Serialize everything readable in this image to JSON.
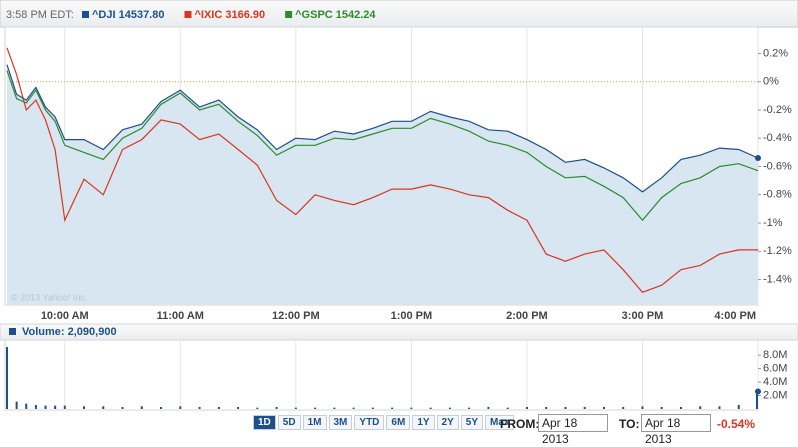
{
  "header": {
    "time": "3:58 PM EDT:"
  },
  "chart_data": [
    {
      "type": "line",
      "watermark": "© 2013 Yahoo! Inc.",
      "x": [
        570,
        575,
        580,
        585,
        590,
        595,
        600,
        610,
        620,
        630,
        640,
        650,
        660,
        670,
        680,
        690,
        700,
        710,
        720,
        730,
        740,
        750,
        760,
        770,
        780,
        790,
        800,
        810,
        820,
        830,
        840,
        850,
        860,
        870,
        880,
        890,
        900,
        910,
        920,
        930,
        940,
        950,
        960
      ],
      "xlim": [
        570,
        960
      ],
      "xticks": [
        {
          "value": 600,
          "label": "10:00 AM"
        },
        {
          "value": 660,
          "label": "11:00 AM"
        },
        {
          "value": 720,
          "label": "12:00 PM"
        },
        {
          "value": 780,
          "label": "1:00 PM"
        },
        {
          "value": 840,
          "label": "2:00 PM"
        },
        {
          "value": 900,
          "label": "3:00 PM"
        },
        {
          "value": 960,
          "label": "4:00 PM"
        }
      ],
      "ylim": [
        -1.58,
        0.38
      ],
      "yticks": [
        {
          "value": 0.2,
          "label": "0.2%"
        },
        {
          "value": 0,
          "label": "0%"
        },
        {
          "value": -0.2,
          "label": "-0.2%"
        },
        {
          "value": -0.4,
          "label": "-0.4%"
        },
        {
          "value": -0.6,
          "label": "-0.6%"
        },
        {
          "value": -0.8,
          "label": "-0.8%"
        },
        {
          "value": -1,
          "label": "-1%"
        },
        {
          "value": -1.2,
          "label": "-1.2%"
        },
        {
          "value": -1.4,
          "label": "-1.4%"
        }
      ],
      "grid": true,
      "zero_line": true,
      "zero_line_color": "#d9963a",
      "area_color": "#d8e6f1",
      "series": [
        {
          "name": "^DJI 14537.80",
          "color": "#1d4f8a",
          "area": true,
          "values": [
            0.12,
            -0.09,
            -0.13,
            -0.04,
            -0.18,
            -0.25,
            -0.41,
            -0.41,
            -0.48,
            -0.34,
            -0.3,
            -0.14,
            -0.06,
            -0.18,
            -0.13,
            -0.25,
            -0.34,
            -0.48,
            -0.4,
            -0.41,
            -0.35,
            -0.37,
            -0.33,
            -0.28,
            -0.28,
            -0.21,
            -0.25,
            -0.28,
            -0.34,
            -0.35,
            -0.41,
            -0.48,
            -0.57,
            -0.55,
            -0.61,
            -0.68,
            -0.78,
            -0.68,
            -0.55,
            -0.52,
            -0.47,
            -0.48,
            -0.54
          ]
        },
        {
          "name": "^IXIC 3166.90",
          "color": "#d9361e",
          "values": [
            0.24,
            0.05,
            -0.2,
            -0.13,
            -0.27,
            -0.48,
            -0.98,
            -0.69,
            -0.8,
            -0.48,
            -0.41,
            -0.27,
            -0.3,
            -0.41,
            -0.37,
            -0.48,
            -0.59,
            -0.84,
            -0.94,
            -0.8,
            -0.84,
            -0.87,
            -0.82,
            -0.76,
            -0.76,
            -0.73,
            -0.76,
            -0.8,
            -0.82,
            -0.91,
            -0.98,
            -1.22,
            -1.27,
            -1.22,
            -1.19,
            -1.33,
            -1.49,
            -1.44,
            -1.33,
            -1.3,
            -1.22,
            -1.19,
            -1.19
          ]
        },
        {
          "name": "^GSPC 1542.24",
          "color": "#2d8a2d",
          "values": [
            0.08,
            -0.12,
            -0.15,
            -0.06,
            -0.2,
            -0.28,
            -0.45,
            -0.5,
            -0.55,
            -0.4,
            -0.33,
            -0.16,
            -0.08,
            -0.2,
            -0.16,
            -0.28,
            -0.38,
            -0.52,
            -0.45,
            -0.45,
            -0.4,
            -0.41,
            -0.37,
            -0.33,
            -0.33,
            -0.26,
            -0.3,
            -0.35,
            -0.42,
            -0.45,
            -0.5,
            -0.6,
            -0.68,
            -0.67,
            -0.74,
            -0.82,
            -0.98,
            -0.82,
            -0.72,
            -0.68,
            -0.6,
            -0.58,
            -0.63
          ]
        }
      ]
    },
    {
      "type": "bar",
      "title": "Volume: 2,090,900",
      "x": [
        570,
        575,
        580,
        585,
        590,
        595,
        600,
        610,
        620,
        630,
        640,
        650,
        660,
        670,
        680,
        690,
        700,
        710,
        720,
        730,
        740,
        750,
        760,
        770,
        780,
        790,
        800,
        810,
        820,
        830,
        840,
        850,
        860,
        870,
        880,
        890,
        900,
        910,
        920,
        930,
        940,
        950,
        960
      ],
      "xlim": [
        570,
        960
      ],
      "xticks": [
        600,
        660,
        720,
        780,
        840,
        900,
        960
      ],
      "ylim": [
        0,
        10.1
      ],
      "yticks": [
        {
          "value": 2,
          "label": "2.0M"
        },
        {
          "value": 4,
          "label": "4.0M"
        },
        {
          "value": 6,
          "label": "6.0M"
        },
        {
          "value": 8,
          "label": "8.0M"
        }
      ],
      "grid": true,
      "color": "#1d4f8a",
      "values": [
        9.2,
        1.1,
        0.8,
        0.6,
        0.5,
        0.5,
        0.5,
        0.4,
        0.4,
        0.3,
        0.4,
        0.3,
        0.4,
        0.3,
        0.3,
        0.3,
        0.2,
        0.3,
        0.2,
        0.2,
        0.2,
        0.2,
        0.2,
        0.2,
        0.2,
        0.2,
        0.2,
        0.2,
        0.3,
        0.2,
        0.3,
        0.3,
        0.3,
        0.3,
        0.3,
        0.3,
        0.4,
        0.3,
        0.3,
        0.4,
        0.4,
        0.6,
        2.6
      ]
    }
  ],
  "controls": {
    "ranges": [
      "1D",
      "5D",
      "1M",
      "3M",
      "YTD",
      "6M",
      "1Y",
      "2Y",
      "5Y",
      "Max"
    ],
    "from_label": "FROM:",
    "from_value": "Apr 18 2013",
    "to_label": "TO:",
    "to_value": "Apr 18 2013",
    "change": "-0.54%"
  }
}
